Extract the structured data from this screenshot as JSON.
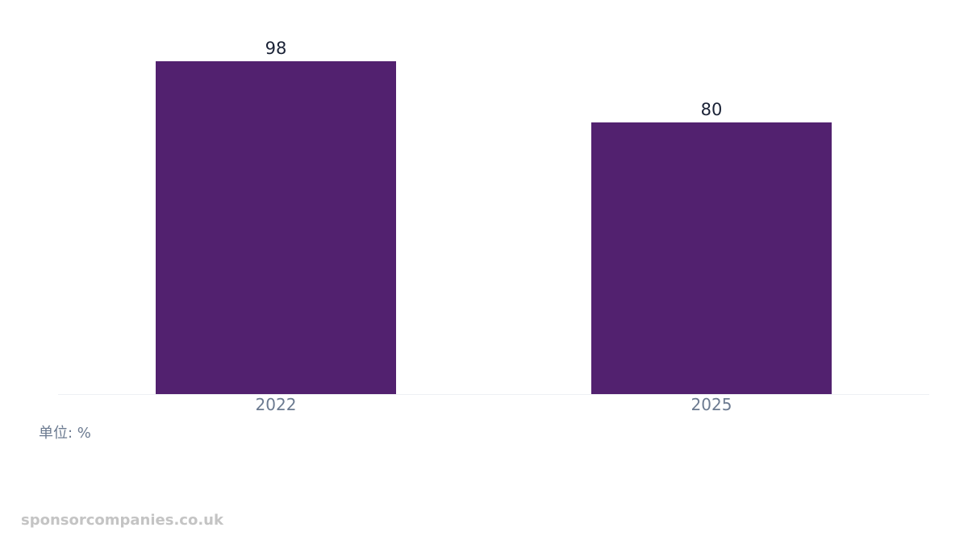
{
  "chart_data": {
    "type": "bar",
    "categories": [
      "2022",
      "2025"
    ],
    "values": [
      98,
      80
    ],
    "data_labels": [
      "98",
      "80"
    ],
    "title": "",
    "xlabel": "",
    "ylabel": "",
    "ylim": [
      0,
      98
    ],
    "grid": false,
    "legend": "none",
    "bar_color": "#52216f",
    "baseline_color": "#eef0f4"
  },
  "unit_note": "单位: %",
  "watermark": "sponsorcompanies.co.uk"
}
